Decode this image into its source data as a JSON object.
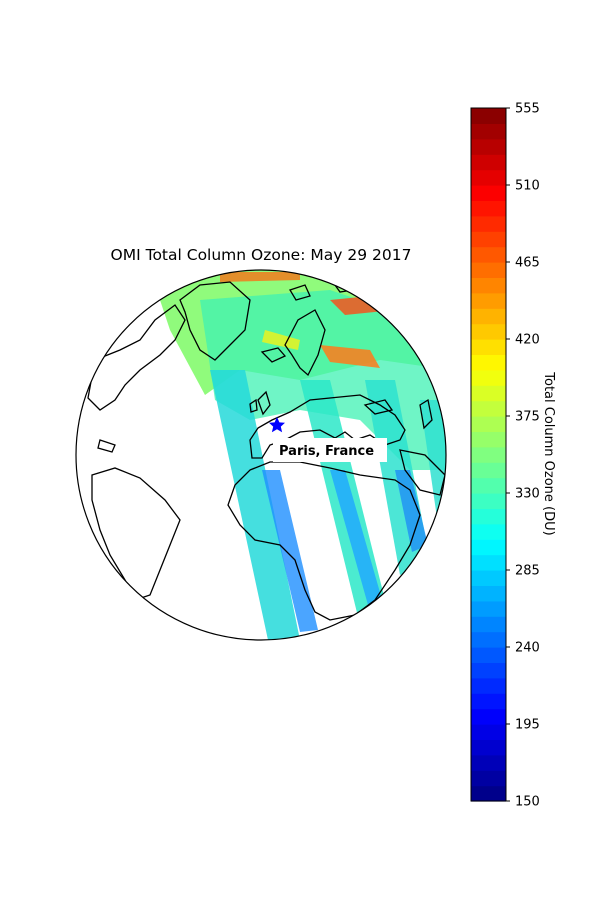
{
  "figure": {
    "title": "OMI Total Column Ozone: May 29 2017"
  },
  "map": {
    "projection": "orthographic",
    "coastlines": true,
    "marker": {
      "label": "Paris, France",
      "symbol": "star",
      "color": "#0000ff"
    },
    "swaths": [
      {
        "type": "band",
        "color": "#7bfd7a",
        "opacity": 0.85
      },
      {
        "type": "band",
        "color": "#2ef0c0",
        "opacity": 0.85
      },
      {
        "type": "band",
        "color": "#19c8f2",
        "opacity": 0.85
      },
      {
        "type": "band",
        "color": "#1e8fff",
        "opacity": 0.85
      },
      {
        "type": "band",
        "color": "#ff5a1a",
        "opacity": 0.8
      }
    ]
  },
  "colorbar": {
    "label": "Total Column Ozone (DU)",
    "min": 150,
    "max": 555,
    "ticks": [
      "150",
      "195",
      "240",
      "285",
      "330",
      "375",
      "420",
      "465",
      "510",
      "555"
    ],
    "colormap": "jet",
    "levels": 45
  }
}
